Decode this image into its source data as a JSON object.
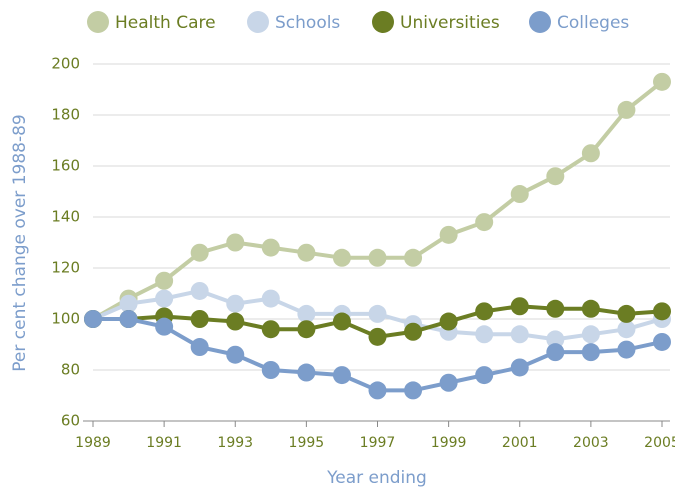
{
  "chart_data": {
    "type": "line",
    "x_label": "Year ending",
    "y_label": "Per cent change over 1988-89",
    "x": [
      1989,
      1990,
      1991,
      1992,
      1993,
      1994,
      1995,
      1996,
      1997,
      1998,
      1999,
      2000,
      2001,
      2002,
      2003,
      2004,
      2005
    ],
    "series": [
      {
        "name": "Health Care",
        "color": "#c3cda4",
        "values": [
          100,
          108,
          115,
          126,
          130,
          128,
          126,
          124,
          124,
          124,
          133,
          138,
          149,
          156,
          165,
          182,
          193
        ]
      },
      {
        "name": "Schools",
        "color": "#c8d6e8",
        "values": [
          100,
          106,
          108,
          111,
          106,
          108,
          102,
          102,
          102,
          98,
          95,
          94,
          94,
          92,
          94,
          96,
          100
        ]
      },
      {
        "name": "Universities",
        "color": "#6b7d23",
        "values": [
          100,
          100,
          101,
          100,
          99,
          96,
          96,
          99,
          93,
          95,
          99,
          103,
          105,
          104,
          104,
          102,
          103
        ]
      },
      {
        "name": "Colleges",
        "color": "#7c9dcb",
        "values": [
          100,
          100,
          97,
          89,
          86,
          80,
          79,
          78,
          72,
          72,
          75,
          78,
          81,
          87,
          87,
          88,
          91
        ]
      }
    ],
    "xlim": [
      1989,
      2005
    ],
    "xticks": [
      1989,
      1991,
      1993,
      1995,
      1997,
      1999,
      2001,
      2003,
      2005
    ],
    "ylim": [
      60,
      200
    ],
    "yticks": [
      60,
      80,
      100,
      120,
      140,
      160,
      180,
      200
    ],
    "grid": true,
    "legend": "top"
  }
}
